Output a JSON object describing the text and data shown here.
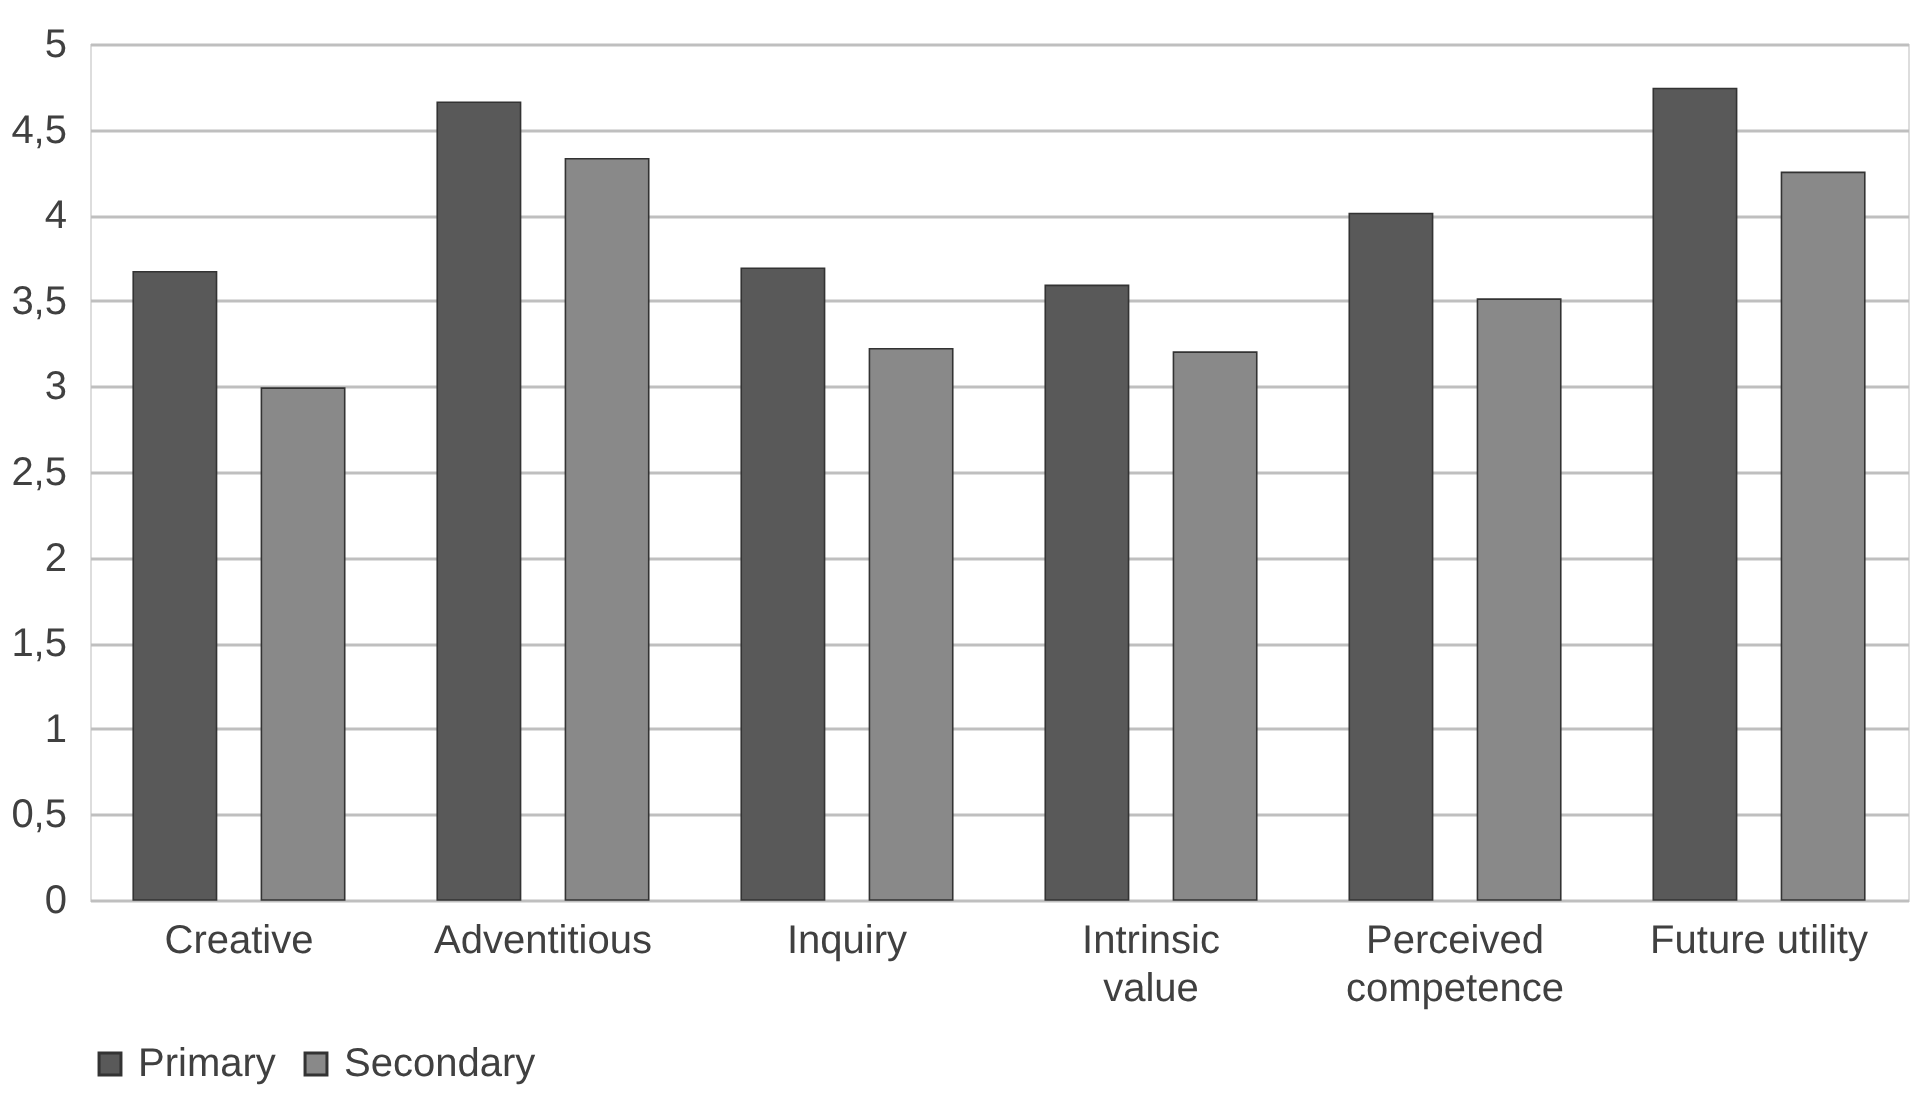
{
  "chart_data": {
    "type": "bar",
    "categories": [
      "Creative",
      "Adventitious",
      "Inquiry",
      "Intrinsic\nvalue",
      "Perceived\ncompetence",
      "Future utility"
    ],
    "series": [
      {
        "name": "Primary",
        "color": "#595959",
        "values": [
          3.67,
          4.66,
          3.69,
          3.59,
          4.01,
          4.74
        ]
      },
      {
        "name": "Secondary",
        "color": "#898989",
        "values": [
          2.99,
          4.33,
          3.22,
          3.2,
          3.51,
          4.25
        ]
      }
    ],
    "ylim": [
      0,
      5
    ],
    "yticks": [
      0,
      {
        "value": 0.5,
        "label": "0,5"
      },
      1,
      {
        "value": 1.5,
        "label": "1,5"
      },
      2,
      {
        "value": 2.5,
        "label": "2,5"
      },
      3,
      {
        "value": 3.5,
        "label": "3,5"
      },
      4,
      {
        "value": 4.5,
        "label": "4,5"
      },
      5
    ],
    "grid": "y",
    "legend": "bottom"
  }
}
